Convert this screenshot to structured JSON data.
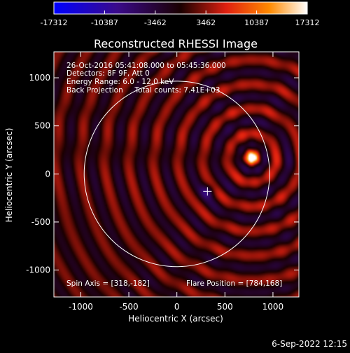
{
  "chart_data": {
    "type": "heatmap",
    "title": "Reconstructed RHESSI Image",
    "xlabel": "Heliocentric X (arcsec)",
    "ylabel": "Heliocentric Y (arcsec)",
    "xlim": [
      -1280,
      1270
    ],
    "ylim": [
      -1280,
      1270
    ],
    "x_ticks": [
      -1000,
      -500,
      0,
      500,
      1000
    ],
    "y_ticks": [
      -1000,
      -500,
      0,
      500,
      1000
    ],
    "colorbar": {
      "ticks": [
        -17312,
        -10387,
        -3462,
        3462,
        10387,
        17312
      ],
      "range": [
        -17312,
        17312
      ]
    },
    "info_lines": [
      "26-Oct-2016 05:41:08.000 to 05:45:36.000",
      "Detectors: 8F 9F, Att 0",
      "Energy Range: 6.0 - 12.0 keV",
      "Back Projection     Total counts: 7.41E+03"
    ],
    "spin_axis_text": "Spin Axis = [318,-182]",
    "flare_position_text": "Flare Position = [784,168]",
    "spin_axis": [
      318,
      -182
    ],
    "flare_position": [
      784,
      168
    ],
    "solar_disk_radius_arcsec": 965,
    "timestamp": "6-Sep-2022 12:15"
  }
}
